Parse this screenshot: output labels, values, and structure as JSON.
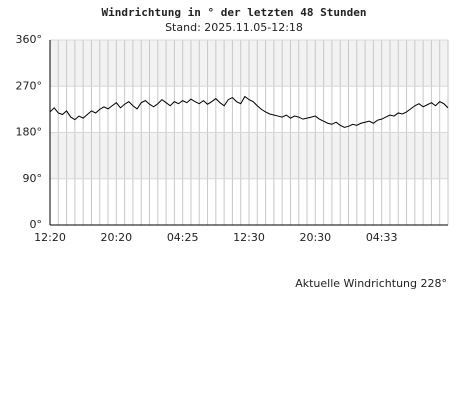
{
  "chart_data": {
    "type": "line",
    "title": "Windrichtung in ° der letzten 48 Stunden",
    "subtitle": "Stand: 2025.11.05-12:18",
    "annotation": "Aktuelle Windrichtung 228°",
    "categories": [
      "12:20",
      null,
      null,
      null,
      null,
      null,
      null,
      null,
      null,
      null,
      null,
      null,
      null,
      null,
      null,
      null,
      "20:20",
      null,
      null,
      null,
      null,
      null,
      null,
      null,
      null,
      null,
      null,
      null,
      null,
      null,
      null,
      null,
      "04:25",
      null,
      null,
      null,
      null,
      null,
      null,
      null,
      null,
      null,
      null,
      null,
      null,
      null,
      null,
      null,
      "12:30",
      null,
      null,
      null,
      null,
      null,
      null,
      null,
      null,
      null,
      null,
      null,
      null,
      null,
      null,
      null,
      "20:30",
      null,
      null,
      null,
      null,
      null,
      null,
      null,
      null,
      null,
      null,
      null,
      null,
      null,
      null,
      null,
      "04:33",
      null,
      null,
      null,
      null,
      null,
      null,
      null,
      null,
      null,
      null,
      null,
      null,
      null,
      null,
      null,
      null
    ],
    "values": [
      220,
      228,
      218,
      215,
      222,
      210,
      205,
      212,
      208,
      215,
      222,
      218,
      225,
      230,
      226,
      232,
      238,
      228,
      235,
      240,
      232,
      226,
      238,
      242,
      235,
      230,
      236,
      244,
      238,
      232,
      240,
      236,
      242,
      238,
      245,
      240,
      236,
      242,
      235,
      240,
      246,
      238,
      232,
      244,
      248,
      240,
      236,
      250,
      244,
      240,
      232,
      225,
      220,
      216,
      214,
      212,
      210,
      214,
      208,
      212,
      210,
      206,
      208,
      210,
      212,
      206,
      202,
      198,
      196,
      200,
      194,
      190,
      192,
      196,
      194,
      198,
      200,
      202,
      198,
      204,
      206,
      210,
      214,
      212,
      218,
      216,
      220,
      226,
      232,
      236,
      230,
      234,
      238,
      232,
      240,
      236,
      228
    ],
    "color": "#000000",
    "ylim": [
      0,
      360
    ],
    "yticks": [
      {
        "value": 0,
        "label": "0°"
      },
      {
        "value": 90,
        "label": "90°"
      },
      {
        "value": 180,
        "label": "180°"
      },
      {
        "value": 270,
        "label": "270°"
      },
      {
        "value": 360,
        "label": "360°"
      }
    ],
    "grid": true
  }
}
